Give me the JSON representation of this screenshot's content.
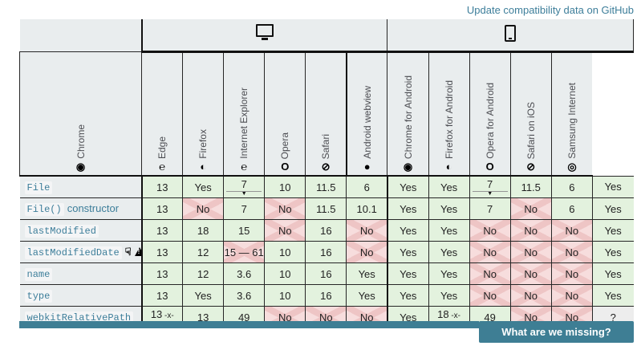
{
  "header": {
    "link_text": "Update compatibility data on GitHub"
  },
  "groups": [
    {
      "name": "Desktop",
      "icon": "desktop-icon"
    },
    {
      "name": "Mobile",
      "icon": "mobile-icon"
    }
  ],
  "browsers": [
    {
      "label": "Chrome",
      "icon": "chrome-icon",
      "glyph": "◉"
    },
    {
      "label": "Edge",
      "icon": "edge-icon",
      "glyph": "℮"
    },
    {
      "label": "Firefox",
      "icon": "firefox-icon",
      "glyph": "◐"
    },
    {
      "label": "Internet Explorer",
      "icon": "internet-explorer-icon",
      "glyph": "℮"
    },
    {
      "label": "Opera",
      "icon": "opera-icon",
      "glyph": "O"
    },
    {
      "label": "Safari",
      "icon": "safari-icon",
      "glyph": "⊘"
    },
    {
      "label": "Android webview",
      "icon": "android-webview-icon",
      "glyph": "●"
    },
    {
      "label": "Chrome for Android",
      "icon": "chrome-android-icon",
      "glyph": "◉"
    },
    {
      "label": "Firefox for Android",
      "icon": "firefox-android-icon",
      "glyph": "◐"
    },
    {
      "label": "Opera for Android",
      "icon": "opera-android-icon",
      "glyph": "O"
    },
    {
      "label": "Safari on iOS",
      "icon": "safari-ios-icon",
      "glyph": "⊘"
    },
    {
      "label": "Samsung Internet",
      "icon": "samsung-internet-icon",
      "glyph": "◎"
    }
  ],
  "rows": [
    {
      "feature": {
        "code": "File",
        "suffix": "",
        "flags": []
      },
      "cells": [
        {
          "text": "13",
          "support": "yes"
        },
        {
          "text": "Yes",
          "support": "yes"
        },
        {
          "text": "7",
          "support": "yes",
          "note": true
        },
        {
          "text": "10",
          "support": "yes"
        },
        {
          "text": "11.5",
          "support": "yes"
        },
        {
          "text": "6",
          "support": "yes"
        },
        {
          "text": "Yes",
          "support": "yes"
        },
        {
          "text": "Yes",
          "support": "yes"
        },
        {
          "text": "7",
          "support": "yes",
          "note": true
        },
        {
          "text": "11.5",
          "support": "yes"
        },
        {
          "text": "6",
          "support": "yes"
        },
        {
          "text": "Yes",
          "support": "yes"
        }
      ]
    },
    {
      "feature": {
        "code": "File()",
        "suffix": "constructor",
        "flags": []
      },
      "cells": [
        {
          "text": "13",
          "support": "yes"
        },
        {
          "text": "No",
          "support": "no"
        },
        {
          "text": "7",
          "support": "yes"
        },
        {
          "text": "No",
          "support": "no"
        },
        {
          "text": "11.5",
          "support": "yes"
        },
        {
          "text": "10.1",
          "support": "yes"
        },
        {
          "text": "Yes",
          "support": "yes"
        },
        {
          "text": "Yes",
          "support": "yes"
        },
        {
          "text": "7",
          "support": "yes"
        },
        {
          "text": "No",
          "support": "no"
        },
        {
          "text": "6",
          "support": "yes"
        },
        {
          "text": "Yes",
          "support": "yes"
        }
      ]
    },
    {
      "feature": {
        "code": "lastModified",
        "suffix": "",
        "flags": []
      },
      "cells": [
        {
          "text": "13",
          "support": "yes"
        },
        {
          "text": "18",
          "support": "yes"
        },
        {
          "text": "15",
          "support": "yes"
        },
        {
          "text": "No",
          "support": "no"
        },
        {
          "text": "16",
          "support": "yes"
        },
        {
          "text": "No",
          "support": "no"
        },
        {
          "text": "Yes",
          "support": "yes"
        },
        {
          "text": "Yes",
          "support": "yes"
        },
        {
          "text": "No",
          "support": "no"
        },
        {
          "text": "No",
          "support": "no"
        },
        {
          "text": "No",
          "support": "no"
        },
        {
          "text": "Yes",
          "support": "yes"
        }
      ]
    },
    {
      "feature": {
        "code": "lastModifiedDate",
        "suffix": "",
        "flags": [
          "thumbs-down-icon",
          "warning-icon"
        ]
      },
      "cells": [
        {
          "text": "13",
          "support": "yes"
        },
        {
          "text": "12",
          "support": "yes"
        },
        {
          "text": "15 — 61",
          "support": "no"
        },
        {
          "text": "10",
          "support": "yes"
        },
        {
          "text": "16",
          "support": "yes"
        },
        {
          "text": "No",
          "support": "no"
        },
        {
          "text": "Yes",
          "support": "yes"
        },
        {
          "text": "Yes",
          "support": "yes"
        },
        {
          "text": "No",
          "support": "no"
        },
        {
          "text": "No",
          "support": "no"
        },
        {
          "text": "No",
          "support": "no"
        },
        {
          "text": "Yes",
          "support": "yes"
        }
      ]
    },
    {
      "feature": {
        "code": "name",
        "suffix": "",
        "flags": []
      },
      "cells": [
        {
          "text": "13",
          "support": "yes"
        },
        {
          "text": "12",
          "support": "yes"
        },
        {
          "text": "3.6",
          "support": "yes"
        },
        {
          "text": "10",
          "support": "yes"
        },
        {
          "text": "16",
          "support": "yes"
        },
        {
          "text": "Yes",
          "support": "yes"
        },
        {
          "text": "Yes",
          "support": "yes"
        },
        {
          "text": "Yes",
          "support": "yes"
        },
        {
          "text": "No",
          "support": "no"
        },
        {
          "text": "No",
          "support": "no"
        },
        {
          "text": "No",
          "support": "no"
        },
        {
          "text": "Yes",
          "support": "yes"
        }
      ]
    },
    {
      "feature": {
        "code": "type",
        "suffix": "",
        "flags": []
      },
      "cells": [
        {
          "text": "13",
          "support": "yes"
        },
        {
          "text": "Yes",
          "support": "yes"
        },
        {
          "text": "3.6",
          "support": "yes"
        },
        {
          "text": "10",
          "support": "yes"
        },
        {
          "text": "16",
          "support": "yes"
        },
        {
          "text": "Yes",
          "support": "yes"
        },
        {
          "text": "Yes",
          "support": "yes"
        },
        {
          "text": "Yes",
          "support": "yes"
        },
        {
          "text": "No",
          "support": "no"
        },
        {
          "text": "No",
          "support": "no"
        },
        {
          "text": "No",
          "support": "no"
        },
        {
          "text": "Yes",
          "support": "yes"
        }
      ]
    },
    {
      "feature": {
        "code": "webkitRelativePath",
        "suffix": "",
        "flags": []
      },
      "cells": [
        {
          "text": "13",
          "support": "yes",
          "note": true,
          "prefix": true
        },
        {
          "text": "13",
          "support": "yes"
        },
        {
          "text": "49",
          "support": "yes"
        },
        {
          "text": "No",
          "support": "no"
        },
        {
          "text": "No",
          "support": "no"
        },
        {
          "text": "No",
          "support": "no"
        },
        {
          "text": "Yes",
          "support": "yes"
        },
        {
          "text": "18",
          "support": "yes",
          "note": true,
          "prefix": true
        },
        {
          "text": "49",
          "support": "yes"
        },
        {
          "text": "No",
          "support": "no"
        },
        {
          "text": "No",
          "support": "no"
        },
        {
          "text": "?",
          "support": "unknown"
        }
      ]
    }
  ],
  "footer": {
    "button_label": "What are we missing?"
  },
  "colors": {
    "supported_bg": "#e3f2de",
    "unsupported_bg": "#f7dddd",
    "unknown_bg": "#ededed",
    "header_bg": "#e9edee",
    "accent_teal": "#3e7e94",
    "link_blue": "#3d7e9a"
  }
}
